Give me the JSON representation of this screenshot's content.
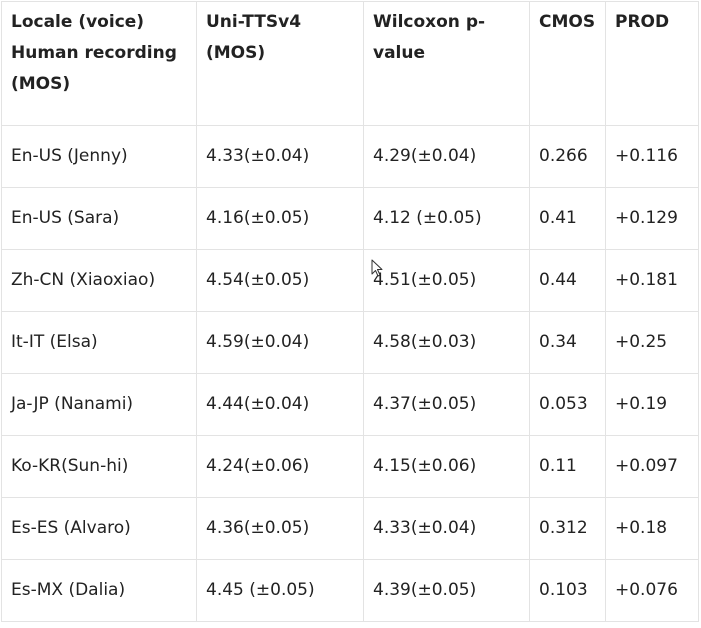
{
  "table": {
    "headers": [
      "Locale (voice) Human recording (MOS)",
      "Uni-TTSv4 (MOS)",
      "Wilcoxon p-value",
      "CMOS",
      "PROD"
    ],
    "rows": [
      [
        "En-US (Jenny)",
        "4.33(±0.04)",
        "4.29(±0.04)",
        "0.266",
        "+0.116"
      ],
      [
        "En-US (Sara)",
        "4.16(±0.05)",
        "4.12 (±0.05)",
        "0.41",
        "+0.129"
      ],
      [
        "Zh-CN (Xiaoxiao)",
        "4.54(±0.05)",
        "4.51(±0.05)",
        "0.44",
        "+0.181"
      ],
      [
        "It-IT (Elsa)",
        "4.59(±0.04)",
        "4.58(±0.03)",
        "0.34",
        "+0.25"
      ],
      [
        "Ja-JP (Nanami)",
        "4.44(±0.04)",
        "4.37(±0.05)",
        "0.053",
        "+0.19"
      ],
      [
        "Ko-KR(Sun-hi)",
        "4.24(±0.06)",
        "4.15(±0.06)",
        "0.11",
        "+0.097"
      ],
      [
        "Es-ES (Alvaro)",
        "4.36(±0.05)",
        "4.33(±0.04)",
        "0.312",
        "+0.18"
      ],
      [
        "Es-MX (Dalia)",
        "4.45 (±0.05)",
        "4.39(±0.05)",
        "0.103",
        "+0.076"
      ]
    ]
  },
  "cursor": {
    "icon": "mouse-pointer-icon"
  }
}
